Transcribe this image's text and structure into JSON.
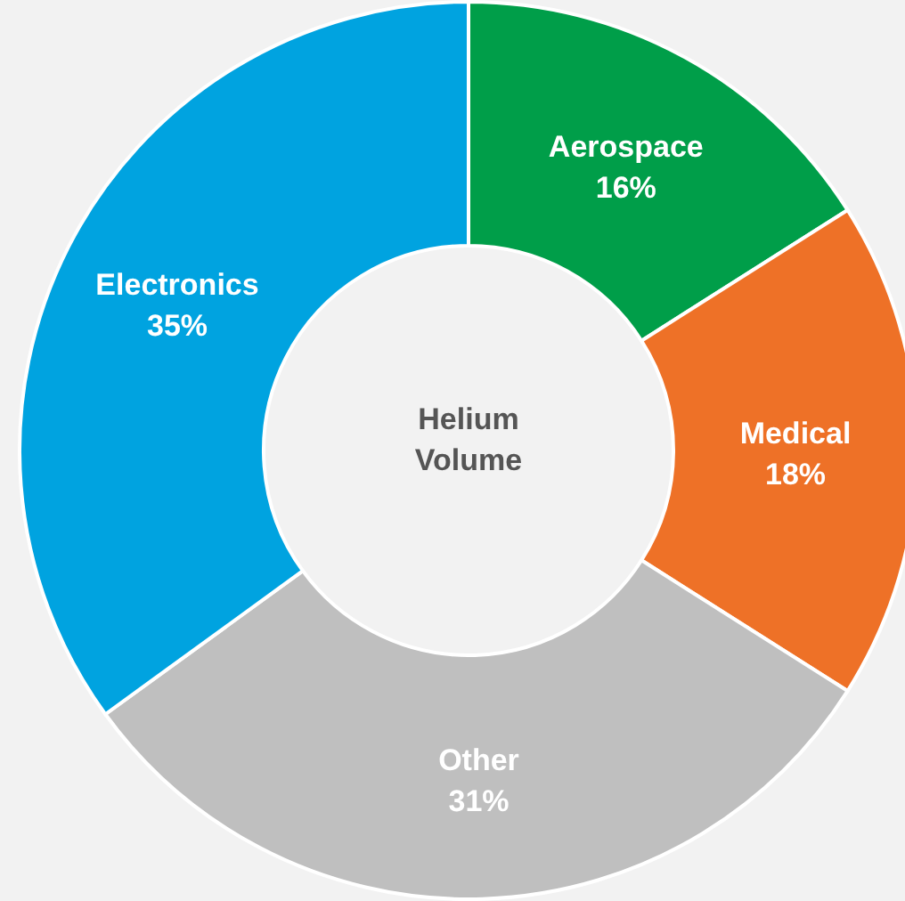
{
  "chart_data": {
    "type": "donut",
    "title": "Helium Volume",
    "categories": [
      "Aerospace",
      "Medical",
      "Other",
      "Electronics"
    ],
    "values": [
      16,
      18,
      31,
      35
    ],
    "colors": [
      "#009e49",
      "#ee7127",
      "#bfbfbf",
      "#00a3e0"
    ],
    "value_labels": [
      "16%",
      "18%",
      "31%",
      "35%"
    ]
  }
}
